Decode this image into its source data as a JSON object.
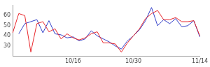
{
  "chart_data": {
    "type": "line",
    "categories": [
      null,
      null,
      null,
      null,
      null,
      null,
      null,
      null,
      null,
      null,
      "10/16",
      null,
      null,
      null,
      null,
      null,
      null,
      null,
      null,
      null,
      "10/30",
      null,
      null,
      null,
      null,
      null,
      null,
      null,
      null,
      null,
      null,
      "11/14"
    ],
    "series": [
      {
        "color": "#e8262b",
        "values": [
          43,
          62,
          60,
          24,
          52,
          54,
          44,
          47,
          37,
          42,
          38,
          36,
          38,
          42,
          44,
          33,
          33,
          32,
          24,
          33,
          40,
          47,
          57,
          62,
          65,
          56,
          56,
          58,
          54,
          54,
          55,
          40
        ]
      },
      {
        "color": "#3340c8",
        "values": [
          null,
          42,
          52,
          54,
          56,
          43,
          55,
          42,
          41,
          38,
          39,
          35,
          37,
          45,
          40,
          37,
          34,
          30,
          27,
          35,
          40,
          46,
          55,
          68,
          50,
          56,
          52,
          57,
          49,
          50,
          55,
          39
        ]
      }
    ],
    "ylim": [
      20,
      70
    ],
    "yticks": [
      30,
      40,
      50,
      60
    ],
    "grid": false
  }
}
